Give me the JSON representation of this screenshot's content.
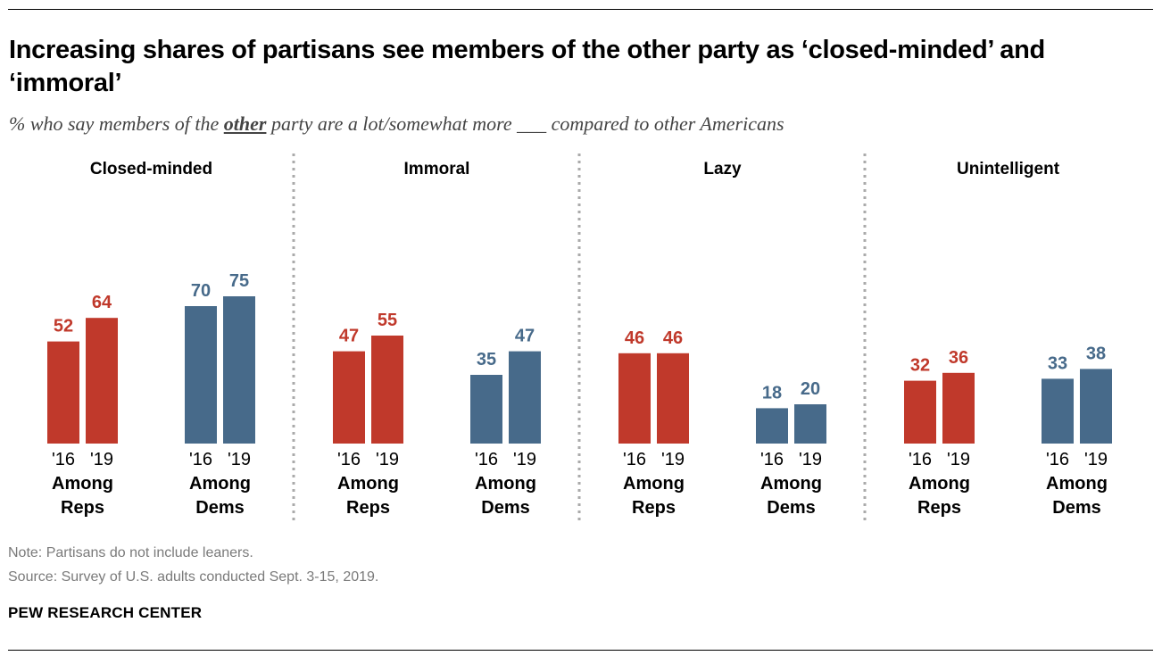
{
  "header": {
    "title": "Increasing shares of partisans see members of the other party as ‘closed-minded’ and ‘immoral’",
    "subtitle_before": "% who say members of the ",
    "subtitle_emph": "other",
    "subtitle_after": " party are a lot/somewhat more ___ compared to other Americans"
  },
  "colors": {
    "reps": "#c0392b",
    "dems": "#476a8a"
  },
  "chart_data": {
    "type": "bar",
    "ylim": [
      0,
      100
    ],
    "grid": false,
    "years": [
      "'16",
      "'19"
    ],
    "panels": [
      {
        "title": "Closed-minded",
        "groups": [
          {
            "line1": "Among",
            "line2": "Reps",
            "party": "reps",
            "values": [
              52,
              64
            ]
          },
          {
            "line1": "Among",
            "line2": "Dems",
            "party": "dems",
            "values": [
              70,
              75
            ]
          }
        ]
      },
      {
        "title": "Immoral",
        "groups": [
          {
            "line1": "Among",
            "line2": "Reps",
            "party": "reps",
            "values": [
              47,
              55
            ]
          },
          {
            "line1": "Among",
            "line2": "Dems",
            "party": "dems",
            "values": [
              35,
              47
            ]
          }
        ]
      },
      {
        "title": "Lazy",
        "groups": [
          {
            "line1": "Among",
            "line2": "Reps",
            "party": "reps",
            "values": [
              46,
              46
            ]
          },
          {
            "line1": "Among",
            "line2": "Dems",
            "party": "dems",
            "values": [
              18,
              20
            ]
          }
        ]
      },
      {
        "title": "Unintelligent",
        "groups": [
          {
            "line1": "Among",
            "line2": "Reps",
            "party": "reps",
            "values": [
              32,
              36
            ]
          },
          {
            "line1": "Among",
            "line2": "Dems",
            "party": "dems",
            "values": [
              33,
              38
            ]
          }
        ]
      }
    ]
  },
  "footer": {
    "note": "Note: Partisans do not include leaners.",
    "source": "Source: Survey of U.S. adults conducted Sept. 3-15, 2019.",
    "brand": "PEW RESEARCH CENTER"
  }
}
